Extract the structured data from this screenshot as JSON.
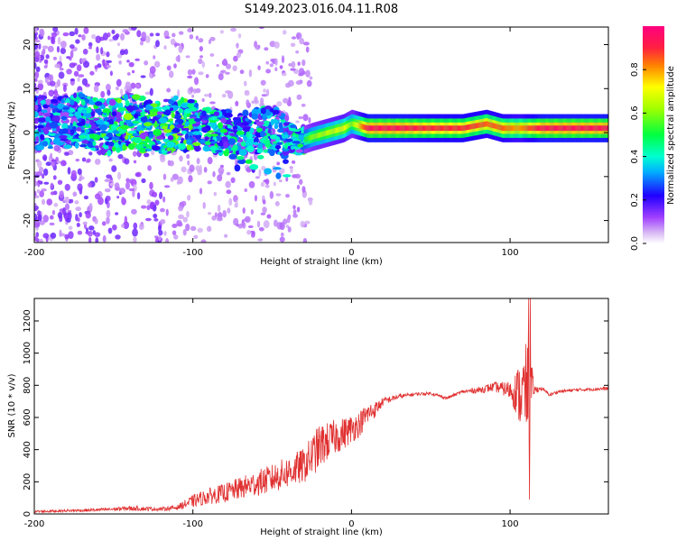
{
  "title": "S149.2023.016.04.11.R08",
  "chart_data": [
    {
      "type": "heatmap",
      "name": "spectrogram",
      "xlabel": "Height of straight line (km)",
      "ylabel": "Frequency (Hz)",
      "xlim": [
        -200,
        162
      ],
      "ylim": [
        -25,
        24
      ],
      "xticks": [
        -200,
        -100,
        0,
        100
      ],
      "yticks": [
        -20,
        -10,
        0,
        10,
        20
      ],
      "colorbar": {
        "label": "Normalized spectral amplitude",
        "range": [
          0,
          1
        ],
        "ticks": [
          0.0,
          0.2,
          0.4,
          0.6,
          0.8
        ],
        "tick_labels": [
          "0.0",
          "0.2",
          "0.4",
          "0.6",
          "0.8"
        ],
        "colors": [
          "#ffffff",
          "#c8a0f0",
          "#8000ff",
          "#0000ff",
          "#00ffff",
          "#00ff00",
          "#ffff00",
          "#ff8000",
          "#ff0040",
          "#ff0080"
        ]
      },
      "ridge": [
        [
          -190,
          2,
          0.35
        ],
        [
          -170,
          3,
          0.4
        ],
        [
          -155,
          1,
          0.5
        ],
        [
          -140,
          3,
          0.55
        ],
        [
          -125,
          1,
          0.5
        ],
        [
          -110,
          2,
          0.55
        ],
        [
          -95,
          1,
          0.5
        ],
        [
          -80,
          0,
          0.45
        ],
        [
          -65,
          0,
          0.45
        ],
        [
          -50,
          1,
          0.4
        ],
        [
          -40,
          -1,
          0.4
        ],
        [
          -33,
          -2,
          0.45
        ],
        [
          -25,
          -1,
          0.6
        ],
        [
          -15,
          0,
          0.65
        ],
        [
          -5,
          1,
          0.7
        ],
        [
          0,
          2,
          0.6
        ],
        [
          10,
          1,
          0.95
        ],
        [
          30,
          1,
          0.95
        ],
        [
          50,
          1,
          0.9
        ],
        [
          70,
          1,
          0.9
        ],
        [
          85,
          2,
          0.85
        ],
        [
          95,
          1,
          0.85
        ],
        [
          105,
          1,
          0.8
        ],
        [
          120,
          1,
          0.95
        ],
        [
          140,
          1,
          0.95
        ],
        [
          160,
          1,
          0.95
        ]
      ]
    },
    {
      "type": "line",
      "name": "snr",
      "xlabel": "Height of straight line (km)",
      "ylabel": "SNR (10 * v/v)",
      "xlim": [
        -200,
        162
      ],
      "ylim": [
        0,
        1340
      ],
      "xticks": [
        -200,
        -100,
        0,
        100
      ],
      "yticks": [
        0,
        200,
        400,
        600,
        800,
        1000,
        1200
      ],
      "color": "#e03030",
      "envelope": [
        [
          -200,
          15,
          8
        ],
        [
          -180,
          20,
          8
        ],
        [
          -160,
          25,
          10
        ],
        [
          -140,
          35,
          15
        ],
        [
          -120,
          30,
          12
        ],
        [
          -110,
          40,
          15
        ],
        [
          -100,
          80,
          40
        ],
        [
          -90,
          110,
          50
        ],
        [
          -80,
          130,
          60
        ],
        [
          -70,
          160,
          70
        ],
        [
          -60,
          190,
          80
        ],
        [
          -50,
          220,
          90
        ],
        [
          -40,
          260,
          100
        ],
        [
          -30,
          300,
          110
        ],
        [
          -25,
          360,
          130
        ],
        [
          -20,
          420,
          140
        ],
        [
          -15,
          450,
          120
        ],
        [
          -10,
          480,
          110
        ],
        [
          -5,
          500,
          100
        ],
        [
          0,
          530,
          90
        ],
        [
          5,
          560,
          80
        ],
        [
          10,
          620,
          70
        ],
        [
          15,
          650,
          50
        ],
        [
          20,
          700,
          25
        ],
        [
          30,
          730,
          15
        ],
        [
          40,
          745,
          10
        ],
        [
          50,
          750,
          10
        ],
        [
          60,
          720,
          10
        ],
        [
          70,
          760,
          10
        ],
        [
          80,
          770,
          20
        ],
        [
          90,
          790,
          30
        ],
        [
          95,
          780,
          40
        ],
        [
          100,
          770,
          60
        ],
        [
          103,
          760,
          120
        ],
        [
          106,
          740,
          200
        ],
        [
          109,
          760,
          260
        ],
        [
          112,
          780,
          350
        ],
        [
          115,
          770,
          30
        ],
        [
          120,
          780,
          10
        ],
        [
          125,
          740,
          10
        ],
        [
          130,
          760,
          10
        ],
        [
          140,
          770,
          10
        ],
        [
          150,
          775,
          10
        ],
        [
          162,
          780,
          12
        ]
      ]
    }
  ]
}
